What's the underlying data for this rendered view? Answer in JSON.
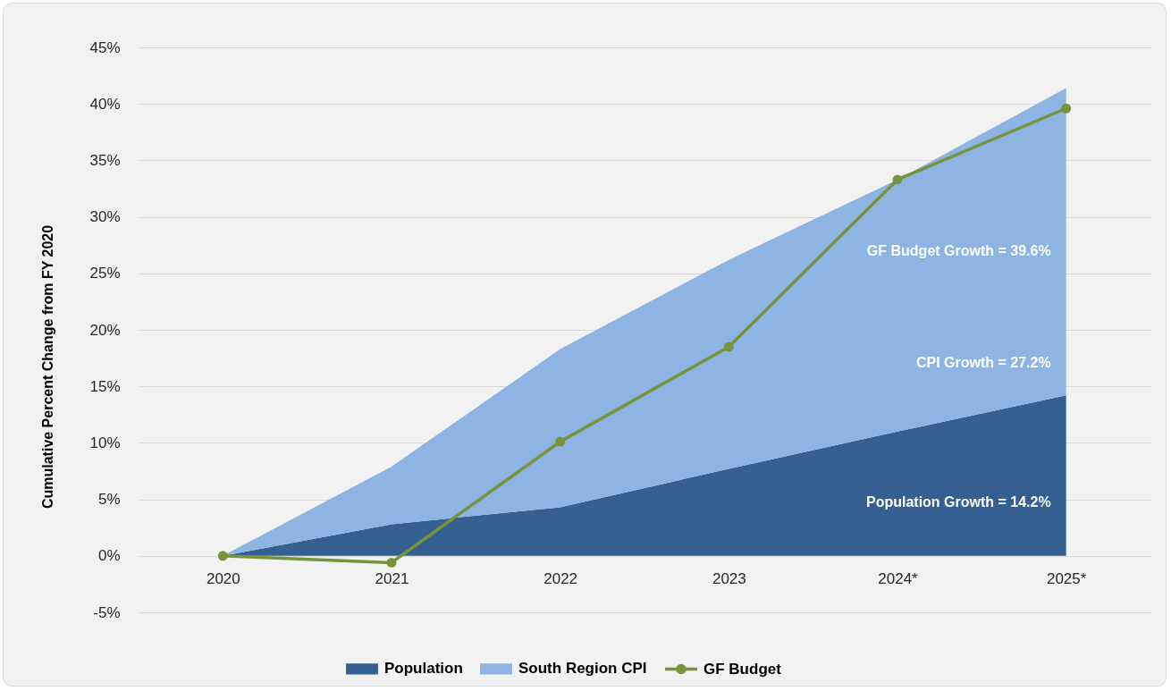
{
  "chart_data": {
    "type": "area",
    "stacked": true,
    "categories": [
      "2020",
      "2021",
      "2022",
      "2023",
      "2024*",
      "2025*"
    ],
    "series": [
      {
        "name": "Population",
        "color": "#355f91",
        "values": [
          0,
          2.8,
          4.3,
          7.7,
          11.0,
          14.2
        ]
      },
      {
        "name": "South Region CPI",
        "color": "#8eb4e3",
        "values": [
          0,
          5.1,
          14.0,
          18.5,
          22.3,
          27.2
        ]
      },
      {
        "name": "GF Budget",
        "type": "line",
        "marker": "circle",
        "color": "#77933c",
        "values": [
          0,
          -0.6,
          10.1,
          18.5,
          33.3,
          39.6
        ]
      }
    ],
    "ylabel": "Cumulative Percent Change from FY 2020",
    "ylim": [
      -5,
      45
    ],
    "yticks": [
      {
        "value": -5,
        "label": "-5%"
      },
      {
        "value": 0,
        "label": "0%"
      },
      {
        "value": 5,
        "label": "5%"
      },
      {
        "value": 10,
        "label": "10%"
      },
      {
        "value": 15,
        "label": "15%"
      },
      {
        "value": 20,
        "label": "20%"
      },
      {
        "value": 25,
        "label": "25%"
      },
      {
        "value": 30,
        "label": "30%"
      },
      {
        "value": 35,
        "label": "35%"
      },
      {
        "value": 40,
        "label": "40%"
      },
      {
        "value": 45,
        "label": "45%"
      }
    ],
    "grid": "y",
    "legend": "bottom",
    "annotations": [
      {
        "text": "GF Budget Growth = 39.6%",
        "x": "2025*",
        "y": 27.0
      },
      {
        "text": "CPI Growth = 27.2%",
        "x": "2025*",
        "y": 17.1
      },
      {
        "text": "Population Growth = 14.2%",
        "x": "2025*",
        "y": 4.7
      }
    ]
  }
}
